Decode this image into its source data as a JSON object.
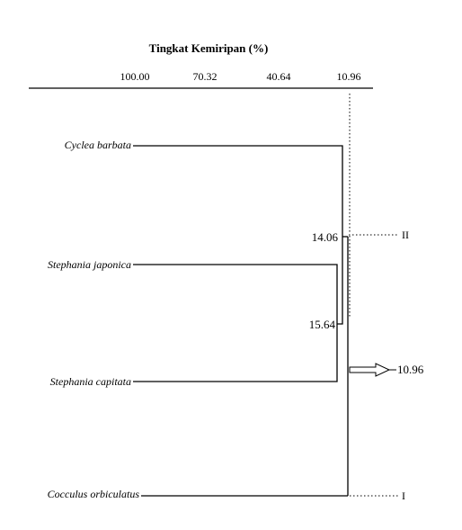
{
  "axis": {
    "title": "Tingkat Kemiripan (%)",
    "ticks": [
      "100.00",
      "70.32",
      "40.64",
      "10.96"
    ]
  },
  "leaves": [
    {
      "label": "Cyclea barbata"
    },
    {
      "label": "Stephania japonica"
    },
    {
      "label": "Stephania capitata"
    },
    {
      "label": "Cocculus orbiculatus"
    }
  ],
  "nodes": {
    "inner": "15.64",
    "middle": "14.06",
    "root": "10.96"
  },
  "groups": {
    "upper": "II",
    "lower": "I"
  },
  "arrow_label": "10.96"
}
